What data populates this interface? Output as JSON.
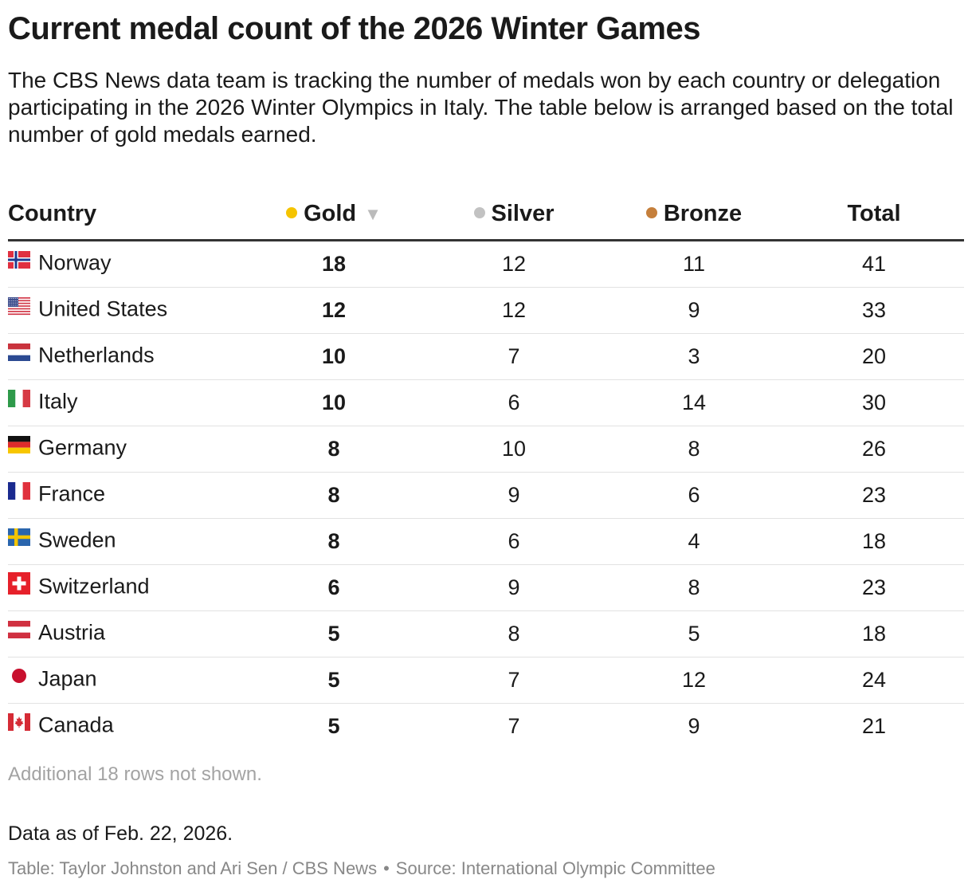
{
  "title": "Current medal count of the 2026 Winter Games",
  "subtitle": "The CBS News data team is tracking the number of medals won by each country or delegation participating in the 2026 Winter Olympics in Italy. The table below is arranged based on the total number of gold medals earned.",
  "colors": {
    "gold": "#f5c400",
    "silver": "#c2c2c2",
    "bronze": "#c57f3b"
  },
  "columns": {
    "country": "Country",
    "gold": "Gold",
    "silver": "Silver",
    "bronze": "Bronze",
    "total": "Total",
    "sort_icon": "sort-descending-icon"
  },
  "chart_data": {
    "type": "table",
    "title": "Current medal count of the 2026 Winter Games",
    "columns": [
      "Country",
      "Gold",
      "Silver",
      "Bronze",
      "Total"
    ],
    "sorted_by": "Gold",
    "sort_order": "descending",
    "rows": [
      {
        "country": "Norway",
        "flag": "norway-flag-icon",
        "gold": 18,
        "silver": 12,
        "bronze": 11,
        "total": 41
      },
      {
        "country": "United States",
        "flag": "usa-flag-icon",
        "gold": 12,
        "silver": 12,
        "bronze": 9,
        "total": 33
      },
      {
        "country": "Netherlands",
        "flag": "netherlands-flag-icon",
        "gold": 10,
        "silver": 7,
        "bronze": 3,
        "total": 20
      },
      {
        "country": "Italy",
        "flag": "italy-flag-icon",
        "gold": 10,
        "silver": 6,
        "bronze": 14,
        "total": 30
      },
      {
        "country": "Germany",
        "flag": "germany-flag-icon",
        "gold": 8,
        "silver": 10,
        "bronze": 8,
        "total": 26
      },
      {
        "country": "France",
        "flag": "france-flag-icon",
        "gold": 8,
        "silver": 9,
        "bronze": 6,
        "total": 23
      },
      {
        "country": "Sweden",
        "flag": "sweden-flag-icon",
        "gold": 8,
        "silver": 6,
        "bronze": 4,
        "total": 18
      },
      {
        "country": "Switzerland",
        "flag": "switzerland-flag-icon",
        "gold": 6,
        "silver": 9,
        "bronze": 8,
        "total": 23
      },
      {
        "country": "Austria",
        "flag": "austria-flag-icon",
        "gold": 5,
        "silver": 8,
        "bronze": 5,
        "total": 18
      },
      {
        "country": "Japan",
        "flag": "japan-flag-icon",
        "gold": 5,
        "silver": 7,
        "bronze": 12,
        "total": 24
      },
      {
        "country": "Canada",
        "flag": "canada-flag-icon",
        "gold": 5,
        "silver": 7,
        "bronze": 9,
        "total": 21
      }
    ]
  },
  "footer": {
    "note": "Additional 18 rows not shown.",
    "as_of": "Data as of Feb. 22, 2026.",
    "credit": "Table: Taylor Johnston and Ari Sen / CBS News",
    "separator": "•",
    "source": "Source: International Olympic Committee"
  }
}
